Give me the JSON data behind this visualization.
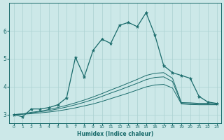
{
  "xlabel": "Humidex (Indice chaleur)",
  "ylabel": "",
  "bg_color": "#cce8e8",
  "grid_color": "#aad0d0",
  "line_color": "#1a6b6b",
  "xlim": [
    -0.5,
    23.5
  ],
  "ylim": [
    2.7,
    7.0
  ],
  "xticks": [
    0,
    1,
    2,
    3,
    4,
    5,
    6,
    7,
    8,
    9,
    10,
    11,
    12,
    13,
    14,
    15,
    16,
    17,
    18,
    19,
    20,
    21,
    22,
    23
  ],
  "yticks": [
    3,
    4,
    5,
    6
  ],
  "main_x": [
    0,
    1,
    2,
    3,
    4,
    5,
    6,
    7,
    8,
    9,
    10,
    11,
    12,
    13,
    14,
    15,
    16,
    17,
    18,
    19,
    20,
    21,
    22,
    23
  ],
  "main_y": [
    3.0,
    2.92,
    3.2,
    3.2,
    3.25,
    3.35,
    3.6,
    5.05,
    4.35,
    5.3,
    5.7,
    5.55,
    6.2,
    6.3,
    6.15,
    6.65,
    5.85,
    4.75,
    4.5,
    4.4,
    4.3,
    3.65,
    3.45,
    3.4
  ],
  "line2_x": [
    0,
    1,
    2,
    3,
    4,
    5,
    6,
    7,
    8,
    9,
    10,
    11,
    12,
    13,
    14,
    15,
    16,
    17,
    18,
    19,
    20,
    21,
    22,
    23
  ],
  "line2_y": [
    3.0,
    3.02,
    3.08,
    3.12,
    3.18,
    3.25,
    3.33,
    3.42,
    3.52,
    3.63,
    3.75,
    3.88,
    4.0,
    4.13,
    4.26,
    4.4,
    4.48,
    4.5,
    4.3,
    3.43,
    3.42,
    3.4,
    3.4,
    3.38
  ],
  "line3_x": [
    0,
    1,
    2,
    3,
    4,
    5,
    6,
    7,
    8,
    9,
    10,
    11,
    12,
    13,
    14,
    15,
    16,
    17,
    18,
    19,
    20,
    21,
    22,
    23
  ],
  "line3_y": [
    3.0,
    3.02,
    3.06,
    3.1,
    3.14,
    3.2,
    3.27,
    3.35,
    3.44,
    3.54,
    3.65,
    3.77,
    3.88,
    4.0,
    4.12,
    4.25,
    4.33,
    4.35,
    4.18,
    3.4,
    3.38,
    3.37,
    3.37,
    3.36
  ],
  "line4_x": [
    0,
    1,
    2,
    3,
    4,
    5,
    6,
    7,
    8,
    9,
    10,
    11,
    12,
    13,
    14,
    15,
    16,
    17,
    18,
    19,
    20,
    21,
    22,
    23
  ],
  "line4_y": [
    3.0,
    3.01,
    3.03,
    3.06,
    3.09,
    3.13,
    3.18,
    3.24,
    3.31,
    3.38,
    3.47,
    3.57,
    3.67,
    3.77,
    3.88,
    3.99,
    4.06,
    4.08,
    3.95,
    3.38,
    3.36,
    3.35,
    3.35,
    3.35
  ]
}
